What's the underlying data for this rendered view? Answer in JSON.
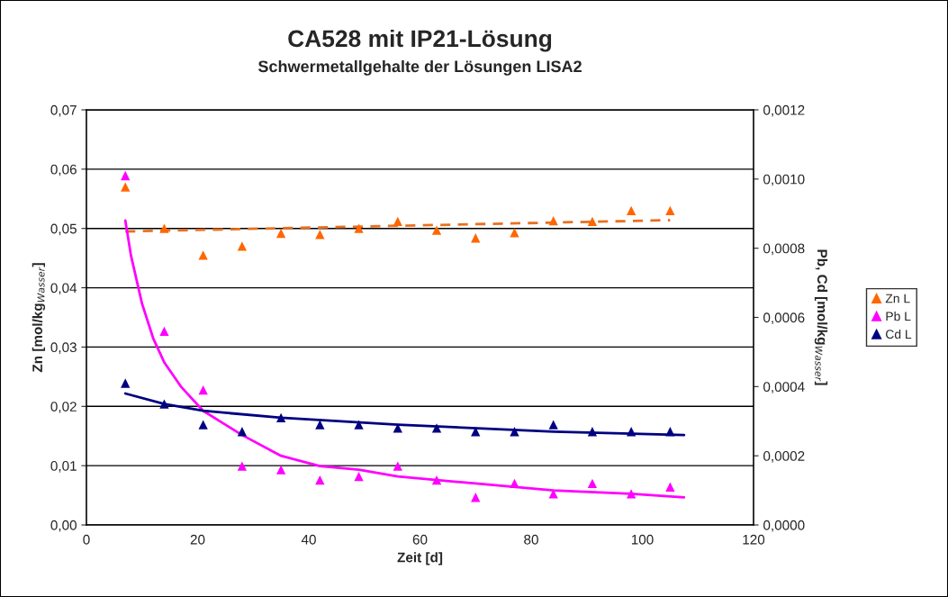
{
  "chart_data": {
    "type": "scatter",
    "title": "CA528 mit IP21-Lösung",
    "subtitle": "Schwermetallgehalte der Lösungen LISA2",
    "xlabel": "Zeit [d]",
    "ylabel": "Zn [mol/kg$_{Wasser}$]",
    "y2label": "Pb, Cd [mol/kg$_{Wasser}$]",
    "xlim": [
      0,
      120
    ],
    "xticks": [
      0,
      20,
      40,
      60,
      80,
      100,
      120
    ],
    "ylim": [
      0,
      0.07
    ],
    "yticks": [
      {
        "value": 0,
        "label": "0,00"
      },
      {
        "value": 0.01,
        "label": "0,01"
      },
      {
        "value": 0.02,
        "label": "0,02"
      },
      {
        "value": 0.03,
        "label": "0,03"
      },
      {
        "value": 0.04,
        "label": "0,04"
      },
      {
        "value": 0.05,
        "label": "0,05"
      },
      {
        "value": 0.06,
        "label": "0,06"
      },
      {
        "value": 0.07,
        "label": "0,07"
      }
    ],
    "y2lim": [
      0,
      0.0012
    ],
    "y2ticks": [
      {
        "value": 0,
        "label": "0,0000"
      },
      {
        "value": 0.0002,
        "label": "0,0002"
      },
      {
        "value": 0.0004,
        "label": "0,0004"
      },
      {
        "value": 0.0006,
        "label": "0,0006"
      },
      {
        "value": 0.0008,
        "label": "0,0008"
      },
      {
        "value": 0.001,
        "label": "0,0010"
      },
      {
        "value": 0.0012,
        "label": "0,0012"
      }
    ],
    "grid": "y",
    "legend": "right",
    "marker": "triangle",
    "series": [
      {
        "name": "Zn L",
        "axis": "y",
        "color": "#ff6600",
        "x": [
          7,
          14,
          21,
          28,
          35,
          42,
          49,
          56,
          63,
          70,
          77,
          84,
          91,
          98,
          105
        ],
        "values": [
          0.057,
          0.05,
          0.0455,
          0.047,
          0.0492,
          0.049,
          0.05,
          0.0512,
          0.0497,
          0.0484,
          0.0493,
          0.0513,
          0.0512,
          0.053,
          0.053
        ]
      },
      {
        "name": "Pb L",
        "axis": "y2",
        "color": "#ff00ff",
        "x": [
          7,
          14,
          21,
          28,
          35,
          42,
          49,
          56,
          63,
          70,
          77,
          84,
          91,
          98,
          105
        ],
        "values": [
          0.00101,
          0.00056,
          0.00039,
          0.00017,
          0.00016,
          0.00013,
          0.00014,
          0.00017,
          0.00013,
          8e-05,
          0.00012,
          9e-05,
          0.00012,
          9e-05,
          0.00011
        ]
      },
      {
        "name": "Cd L",
        "axis": "y2",
        "color": "#000080",
        "x": [
          7,
          14,
          21,
          28,
          35,
          42,
          49,
          56,
          63,
          70,
          77,
          84,
          91,
          98,
          105
        ],
        "values": [
          0.00041,
          0.00035,
          0.00029,
          0.00027,
          0.00031,
          0.00029,
          0.00029,
          0.00028,
          0.00028,
          0.00027,
          0.00027,
          0.00029,
          0.00027,
          0.00027,
          0.00027
        ]
      },
      {
        "type": "line",
        "axis": "y",
        "color": "#e87020",
        "line_style": "dashed",
        "marker": "none",
        "x": [
          7,
          105
        ],
        "values": [
          0.0495,
          0.0514
        ]
      },
      {
        "type": "line",
        "axis": "y2",
        "color": "#ff00ff",
        "line_style": "solid",
        "marker": "none",
        "x": [
          7,
          8,
          10,
          12,
          14,
          17,
          21,
          25,
          28,
          35,
          42,
          49,
          56,
          70,
          84,
          98,
          107.5
        ],
        "values": [
          0.00088,
          0.00078,
          0.00064,
          0.00054,
          0.00047,
          0.0004,
          0.00033,
          0.00029,
          0.00026,
          0.0002,
          0.00017,
          0.00016,
          0.00014,
          0.00012,
          0.0001,
          9e-05,
          8e-05
        ]
      },
      {
        "type": "line",
        "axis": "y2",
        "color": "#000080",
        "line_style": "solid",
        "marker": "none",
        "x": [
          7,
          14,
          21,
          35,
          56,
          84,
          107.5
        ],
        "values": [
          0.00038,
          0.00035,
          0.00033,
          0.00031,
          0.00029,
          0.00027,
          0.00026
        ]
      }
    ]
  }
}
